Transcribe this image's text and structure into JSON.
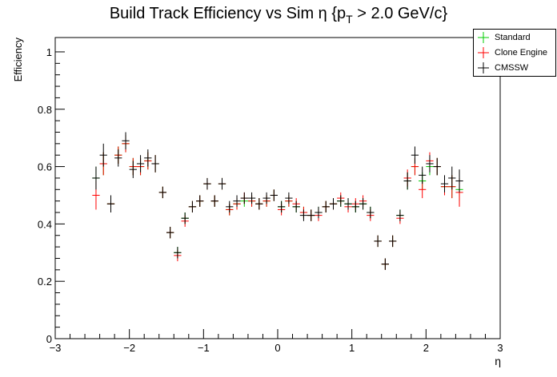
{
  "chart_data": {
    "type": "scatter",
    "title_main": "Build Track Efficiency vs Sim η {p",
    "title_sub": "T",
    "title_tail": " > 2.0 GeV/c}",
    "xlabel": "η",
    "ylabel": "Efficiency",
    "xlim": [
      -3,
      3
    ],
    "ylim": [
      0,
      1.05
    ],
    "xticks": [
      -3,
      -2,
      -1,
      0,
      1,
      2,
      3
    ],
    "xtick_labels": [
      "−3",
      "−2",
      "−1",
      "0",
      "1",
      "2",
      "3"
    ],
    "yticks": [
      0,
      0.2,
      0.4,
      0.6,
      0.8,
      1
    ],
    "ytick_labels": [
      "0",
      "0.2",
      "0.4",
      "0.6",
      "0.8",
      "1"
    ],
    "grid": false,
    "legend_position": "top-right",
    "bin_width": 0.1,
    "x": [
      -2.45,
      -2.35,
      -2.25,
      -2.15,
      -2.05,
      -1.95,
      -1.85,
      -1.75,
      -1.65,
      -1.55,
      -1.45,
      -1.35,
      -1.25,
      -1.15,
      -1.05,
      -0.95,
      -0.85,
      -0.75,
      -0.65,
      -0.55,
      -0.45,
      -0.35,
      -0.25,
      -0.15,
      -0.05,
      0.05,
      0.15,
      0.25,
      0.35,
      0.45,
      0.55,
      0.65,
      0.75,
      0.85,
      0.95,
      1.05,
      1.15,
      1.25,
      1.35,
      1.45,
      1.55,
      1.65,
      1.75,
      1.85,
      1.95,
      2.05,
      2.15,
      2.25,
      2.35,
      2.45
    ],
    "series": [
      {
        "name": "Standard",
        "color": "#00cc00",
        "values": [
          0.56,
          0.61,
          0.47,
          0.64,
          0.68,
          0.6,
          0.6,
          0.62,
          0.61,
          0.51,
          0.37,
          0.3,
          0.42,
          0.46,
          0.48,
          0.54,
          0.48,
          0.54,
          0.45,
          0.47,
          0.48,
          0.48,
          0.47,
          0.48,
          0.5,
          0.46,
          0.48,
          0.46,
          0.44,
          0.43,
          0.44,
          0.46,
          0.47,
          0.48,
          0.47,
          0.46,
          0.47,
          0.44,
          0.34,
          0.26,
          0.34,
          0.43,
          0.55,
          0.6,
          0.55,
          0.6,
          0.6,
          0.53,
          0.53,
          0.52
        ],
        "errors": [
          0.04,
          0.04,
          0.03,
          0.03,
          0.03,
          0.03,
          0.03,
          0.03,
          0.03,
          0.02,
          0.02,
          0.02,
          0.02,
          0.02,
          0.02,
          0.02,
          0.02,
          0.02,
          0.02,
          0.02,
          0.02,
          0.02,
          0.02,
          0.02,
          0.02,
          0.02,
          0.02,
          0.02,
          0.02,
          0.02,
          0.02,
          0.02,
          0.02,
          0.02,
          0.02,
          0.02,
          0.02,
          0.02,
          0.02,
          0.02,
          0.02,
          0.02,
          0.03,
          0.03,
          0.03,
          0.03,
          0.03,
          0.03,
          0.04,
          0.04
        ]
      },
      {
        "name": "Clone Engine",
        "color": "#ff0000",
        "values": [
          0.5,
          0.61,
          0.47,
          0.64,
          0.68,
          0.6,
          0.6,
          0.62,
          0.61,
          0.51,
          0.37,
          0.29,
          0.41,
          0.46,
          0.48,
          0.54,
          0.48,
          0.54,
          0.45,
          0.47,
          0.49,
          0.48,
          0.47,
          0.48,
          0.5,
          0.45,
          0.48,
          0.47,
          0.44,
          0.43,
          0.43,
          0.46,
          0.47,
          0.49,
          0.46,
          0.47,
          0.48,
          0.43,
          0.34,
          0.26,
          0.34,
          0.42,
          0.56,
          0.6,
          0.52,
          0.62,
          0.6,
          0.53,
          0.53,
          0.51
        ],
        "errors": [
          0.05,
          0.04,
          0.03,
          0.03,
          0.03,
          0.03,
          0.03,
          0.03,
          0.03,
          0.02,
          0.02,
          0.02,
          0.02,
          0.02,
          0.02,
          0.02,
          0.02,
          0.02,
          0.02,
          0.02,
          0.02,
          0.02,
          0.02,
          0.02,
          0.02,
          0.02,
          0.02,
          0.02,
          0.02,
          0.02,
          0.02,
          0.02,
          0.02,
          0.02,
          0.02,
          0.02,
          0.02,
          0.02,
          0.02,
          0.02,
          0.02,
          0.02,
          0.03,
          0.03,
          0.03,
          0.03,
          0.03,
          0.03,
          0.04,
          0.05
        ]
      },
      {
        "name": "CMSSW",
        "color": "#000000",
        "values": [
          0.56,
          0.64,
          0.47,
          0.63,
          0.69,
          0.59,
          0.61,
          0.63,
          0.61,
          0.51,
          0.37,
          0.3,
          0.42,
          0.46,
          0.48,
          0.54,
          0.48,
          0.54,
          0.46,
          0.48,
          0.49,
          0.49,
          0.47,
          0.49,
          0.5,
          0.46,
          0.49,
          0.46,
          0.43,
          0.43,
          0.44,
          0.46,
          0.47,
          0.48,
          0.47,
          0.46,
          0.47,
          0.44,
          0.34,
          0.26,
          0.34,
          0.43,
          0.55,
          0.64,
          0.57,
          0.61,
          0.6,
          0.54,
          0.56,
          0.55
        ],
        "errors": [
          0.04,
          0.04,
          0.03,
          0.03,
          0.03,
          0.03,
          0.03,
          0.03,
          0.03,
          0.02,
          0.02,
          0.02,
          0.02,
          0.02,
          0.02,
          0.02,
          0.02,
          0.02,
          0.02,
          0.02,
          0.02,
          0.02,
          0.02,
          0.02,
          0.02,
          0.02,
          0.02,
          0.02,
          0.02,
          0.02,
          0.02,
          0.02,
          0.02,
          0.02,
          0.02,
          0.02,
          0.02,
          0.02,
          0.02,
          0.02,
          0.02,
          0.02,
          0.03,
          0.03,
          0.03,
          0.03,
          0.03,
          0.03,
          0.04,
          0.04
        ]
      }
    ]
  }
}
